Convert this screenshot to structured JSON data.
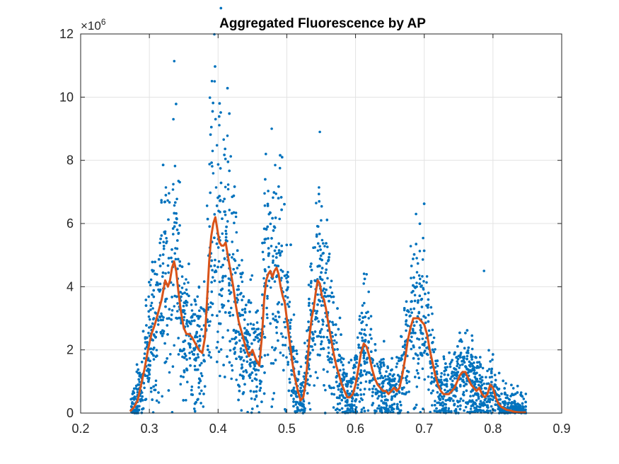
{
  "chart_data": {
    "type": "scatter",
    "title": "Aggregated Fluorescence by AP",
    "xlabel": "",
    "ylabel": "",
    "xlim": [
      0.2,
      0.9
    ],
    "ylim": [
      0,
      12
    ],
    "y_exponent_label": {
      "base": "×10",
      "power": "6"
    },
    "x_ticks": [
      0.2,
      0.3,
      0.4,
      0.5,
      0.6,
      0.7,
      0.8,
      0.9
    ],
    "x_tick_labels": [
      "0.2",
      "0.3",
      "0.4",
      "0.5",
      "0.6",
      "0.7",
      "0.8",
      "0.9"
    ],
    "y_ticks": [
      0,
      2,
      4,
      6,
      8,
      10,
      12
    ],
    "y_tick_labels": [
      "0",
      "2",
      "4",
      "6",
      "8",
      "10",
      "12"
    ],
    "grid": true,
    "series": [
      {
        "kind": "scatter",
        "color": "#0072BD",
        "x_range": [
          0.273,
          0.848
        ],
        "peaks": [
          {
            "x": 0.335,
            "y_max": 9.3
          },
          {
            "x": 0.395,
            "y_max": 10.5
          },
          {
            "x": 0.478,
            "y_max": 9.0
          },
          {
            "x": 0.548,
            "y_max": 8.9
          },
          {
            "x": 0.612,
            "y_max": 4.1
          },
          {
            "x": 0.688,
            "y_max": 6.3
          },
          {
            "x": 0.787,
            "y_max": 4.5
          }
        ]
      },
      {
        "kind": "line",
        "color": "#D95319",
        "x": [
          0.272,
          0.278,
          0.283,
          0.288,
          0.293,
          0.298,
          0.303,
          0.308,
          0.313,
          0.318,
          0.323,
          0.327,
          0.33,
          0.333,
          0.336,
          0.339,
          0.342,
          0.346,
          0.35,
          0.354,
          0.358,
          0.362,
          0.367,
          0.372,
          0.377,
          0.381,
          0.384,
          0.387,
          0.39,
          0.393,
          0.396,
          0.399,
          0.402,
          0.405,
          0.408,
          0.411,
          0.414,
          0.418,
          0.422,
          0.426,
          0.43,
          0.435,
          0.44,
          0.445,
          0.45,
          0.455,
          0.46,
          0.464,
          0.467,
          0.47,
          0.473,
          0.476,
          0.479,
          0.482,
          0.485,
          0.488,
          0.491,
          0.494,
          0.497,
          0.5,
          0.504,
          0.508,
          0.512,
          0.516,
          0.52,
          0.524,
          0.527,
          0.53,
          0.533,
          0.536,
          0.539,
          0.542,
          0.545,
          0.548,
          0.551,
          0.554,
          0.557,
          0.56,
          0.564,
          0.568,
          0.572,
          0.576,
          0.58,
          0.584,
          0.588,
          0.592,
          0.596,
          0.6,
          0.604,
          0.608,
          0.612,
          0.616,
          0.62,
          0.624,
          0.628,
          0.632,
          0.636,
          0.64,
          0.644,
          0.648,
          0.652,
          0.656,
          0.66,
          0.664,
          0.668,
          0.672,
          0.676,
          0.68,
          0.684,
          0.688,
          0.692,
          0.696,
          0.7,
          0.704,
          0.708,
          0.712,
          0.716,
          0.72,
          0.724,
          0.728,
          0.732,
          0.736,
          0.74,
          0.744,
          0.748,
          0.752,
          0.756,
          0.76,
          0.764,
          0.768,
          0.772,
          0.776,
          0.78,
          0.784,
          0.788,
          0.792,
          0.796,
          0.8,
          0.804,
          0.808,
          0.812,
          0.816,
          0.82,
          0.825,
          0.83,
          0.835,
          0.84,
          0.845,
          0.848
        ],
        "y": [
          0.05,
          0.2,
          0.4,
          0.9,
          1.4,
          2.0,
          2.5,
          2.8,
          3.2,
          3.6,
          4.2,
          4.0,
          4.2,
          4.6,
          4.8,
          4.5,
          3.9,
          3.2,
          2.7,
          2.5,
          2.5,
          2.4,
          2.2,
          2.0,
          1.9,
          2.4,
          3.6,
          4.8,
          5.6,
          6.0,
          6.2,
          5.8,
          5.4,
          5.3,
          5.3,
          5.4,
          5.0,
          4.5,
          4.0,
          3.4,
          2.9,
          2.5,
          2.1,
          1.8,
          2.0,
          1.7,
          1.5,
          2.5,
          3.6,
          4.2,
          4.4,
          4.5,
          4.3,
          4.5,
          4.6,
          4.4,
          4.0,
          3.7,
          3.5,
          3.0,
          2.3,
          1.6,
          1.1,
          0.7,
          0.4,
          0.5,
          0.9,
          1.6,
          2.4,
          3.0,
          3.3,
          3.8,
          4.2,
          4.1,
          3.7,
          3.6,
          3.3,
          2.9,
          2.4,
          1.9,
          1.5,
          1.2,
          0.9,
          0.7,
          0.5,
          0.5,
          0.6,
          0.9,
          1.4,
          1.9,
          2.2,
          2.1,
          1.8,
          1.4,
          1.1,
          0.9,
          0.8,
          0.7,
          0.7,
          0.6,
          0.7,
          0.8,
          0.7,
          0.8,
          1.2,
          1.7,
          2.3,
          2.7,
          3.0,
          3.0,
          3.0,
          2.9,
          2.8,
          2.5,
          2.0,
          1.6,
          1.2,
          0.9,
          0.7,
          0.6,
          0.6,
          0.6,
          0.7,
          0.8,
          1.0,
          1.2,
          1.3,
          1.3,
          1.1,
          0.9,
          0.8,
          0.7,
          0.8,
          0.6,
          0.5,
          0.6,
          0.9,
          0.8,
          0.5,
          0.3,
          0.2,
          0.15,
          0.1,
          0.08,
          0.05,
          0.03,
          0.02,
          0.02,
          0.03
        ]
      }
    ]
  }
}
